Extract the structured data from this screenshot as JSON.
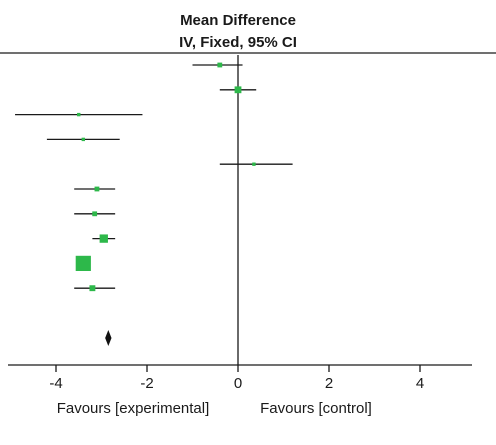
{
  "header": {
    "title_line1": "Mean Difference",
    "title_line2": "IV, Fixed, 95% CI"
  },
  "footer": {
    "favours_left": "Favours [experimental]",
    "favours_right": "Favours [control]"
  },
  "chart_data": {
    "type": "forest",
    "measure": "Mean Difference",
    "method": "IV, Fixed, 95% CI",
    "xlim": [
      -5.1,
      5.3
    ],
    "xticks": [
      -4,
      -2,
      0,
      2,
      4
    ],
    "null_value": 0,
    "studies": [
      {
        "estimate": -0.4,
        "ci": [
          -1.0,
          0.1
        ],
        "weight": 2
      },
      {
        "estimate": 0.0,
        "ci": [
          -0.4,
          0.4
        ],
        "weight": 4
      },
      {
        "estimate": -3.5,
        "ci": [
          -4.9,
          -2.1
        ],
        "weight": 1
      },
      {
        "estimate": -3.4,
        "ci": [
          -4.2,
          -2.6
        ],
        "weight": 1
      },
      {
        "estimate": 0.35,
        "ci": [
          -0.4,
          1.2
        ],
        "weight": 1
      },
      {
        "estimate": -3.1,
        "ci": [
          -3.6,
          -2.7
        ],
        "weight": 2
      },
      {
        "estimate": -3.15,
        "ci": [
          -3.6,
          -2.7
        ],
        "weight": 2
      },
      {
        "estimate": -2.95,
        "ci": [
          -3.2,
          -2.7
        ],
        "weight": 6
      },
      {
        "estimate": -3.4,
        "ci": [
          -3.4,
          -3.4
        ],
        "weight": 20
      },
      {
        "estimate": -3.2,
        "ci": [
          -3.6,
          -2.7
        ],
        "weight": 3
      }
    ],
    "pooled": {
      "estimate": -2.85,
      "ci": [
        -2.92,
        -2.78
      ]
    },
    "colors": {
      "marker": "#2db84a",
      "line": "#1a1a1a",
      "diamond": "#111111"
    }
  }
}
